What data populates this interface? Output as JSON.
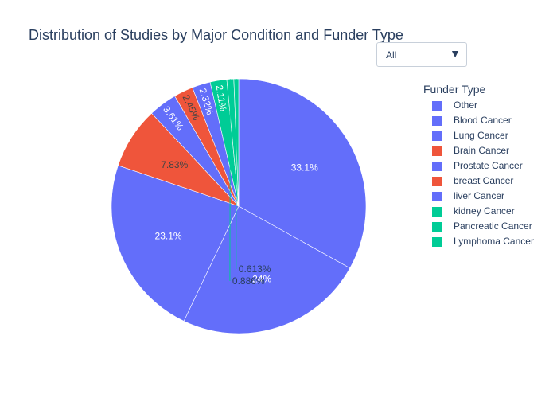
{
  "chart_data": {
    "type": "pie",
    "title": "Distribution of Studies by Major Condition and Funder Type",
    "legend_title": "Funder Type",
    "legend_position": "right",
    "slices": [
      {
        "label": "Other",
        "value": 33.1,
        "text": "33.1%",
        "color": "#636efa"
      },
      {
        "label": "Blood Cancer",
        "value": 24.0,
        "text": "24%",
        "color": "#636efa"
      },
      {
        "label": "Lung Cancer",
        "value": 23.1,
        "text": "23.1%",
        "color": "#636efa"
      },
      {
        "label": "Brain Cancer",
        "value": 7.83,
        "text": "7.83%",
        "color": "#ef553b"
      },
      {
        "label": "Prostate Cancer",
        "value": 3.61,
        "text": "3.61%",
        "color": "#636efa"
      },
      {
        "label": "breast Cancer",
        "value": 2.45,
        "text": "2.45%",
        "color": "#ef553b"
      },
      {
        "label": "liver Cancer",
        "value": 2.32,
        "text": "2.32%",
        "color": "#636efa"
      },
      {
        "label": "kidney Cancer",
        "value": 2.11,
        "text": "2.11%",
        "color": "#00cc96"
      },
      {
        "label": "Pancreatic Cancer",
        "value": 0.886,
        "text": "0.886%",
        "color": "#00cc96"
      },
      {
        "label": "Lymphoma Cancer",
        "value": 0.613,
        "text": "0.613%",
        "color": "#00cc96"
      }
    ]
  },
  "dropdown": {
    "selected": "All",
    "arrow_icon": "triangle-down-icon"
  }
}
